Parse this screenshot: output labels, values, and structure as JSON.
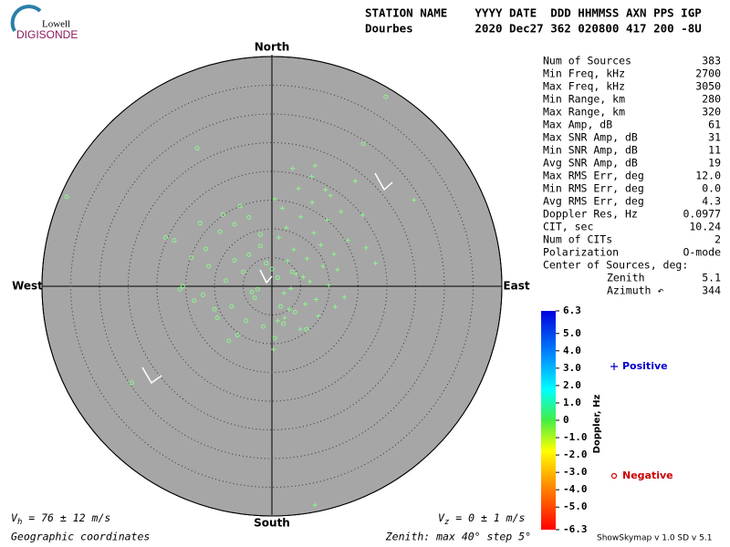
{
  "logo": {
    "top": "Lowell",
    "bottom": "DIGISONDE"
  },
  "header": {
    "line1": "STATION NAME    YYYY DATE  DDD HHMMSS AXN PPS IGP",
    "line2": "Dourbes         2020 Dec27 362 020800 417 200 -8U"
  },
  "stats": {
    "rows": [
      [
        "Num of Sources",
        "383"
      ],
      [
        "Min Freq, kHz",
        "2700"
      ],
      [
        "Max Freq, kHz",
        "3050"
      ],
      [
        "Min Range, km",
        "280"
      ],
      [
        "Max Range, km",
        "320"
      ],
      [
        "Max Amp, dB",
        "61"
      ],
      [
        "Max SNR Amp, dB",
        "31"
      ],
      [
        "Min SNR Amp, dB",
        "11"
      ],
      [
        "Avg SNR Amp, dB",
        "19"
      ],
      [
        "Max RMS Err, deg",
        "12.0"
      ],
      [
        "Min RMS Err, deg",
        "0.0"
      ],
      [
        "Avg RMS Err, deg",
        "4.3"
      ],
      [
        "Doppler Res, Hz",
        "0.0977"
      ],
      [
        "CIT, sec",
        "10.24"
      ],
      [
        "Num of CITs",
        "2"
      ],
      [
        "Polarization",
        "O-mode"
      ]
    ],
    "center_title": "Center of Sources, deg:",
    "center_rows": [
      [
        "Zenith",
        "5.1"
      ],
      [
        "Azimuth ↶",
        "344"
      ]
    ]
  },
  "footer": {
    "vh": {
      "symbol": "V",
      "sub": "h",
      "text": " = 76 ± 12 m/s"
    },
    "vz": {
      "symbol": "V",
      "sub": "z",
      "text": " = 0 ± 1 m/s"
    },
    "coords": "Geographic coordinates",
    "zenith": "Zenith: max 40°  step 5°",
    "version": "ShowSkymap v 1.0   SD v 5.1"
  },
  "colorbar": {
    "title": "Doppler, Hz",
    "ylim": [
      -6.3,
      6.3
    ],
    "yticks": [
      6.3,
      {
        "value": 5,
        "label": "5.0"
      },
      {
        "value": 4,
        "label": "4.0"
      },
      {
        "value": 3,
        "label": "3.0"
      },
      {
        "value": 2,
        "label": "2.0"
      },
      {
        "value": 1,
        "label": "1.0"
      },
      0,
      {
        "value": -1,
        "label": "-1.0"
      },
      {
        "value": -2,
        "label": "-2.0"
      },
      {
        "value": -3,
        "label": "-3.0"
      },
      {
        "value": -4,
        "label": "-4.0"
      },
      {
        "value": -5,
        "label": "-5.0"
      },
      -6.3
    ]
  },
  "chart_data": {
    "type": "skymap",
    "directions": {
      "north": "North",
      "south": "South",
      "west": "West",
      "east": "East"
    },
    "rlim": [
      0,
      40
    ],
    "rticks": [
      5,
      10,
      15,
      20,
      25,
      30,
      35,
      40
    ],
    "series": [
      {
        "name": "Positive",
        "color": "#0000cc",
        "marker": "plus",
        "marker_color": "#8cf58c",
        "x": [
          1.2,
          2.5,
          3.8,
          5.0,
          6.1,
          7.3,
          8.5,
          9.6,
          10.8,
          12.0,
          4.2,
          6.6,
          8.9,
          2.1,
          3.3,
          5.5,
          7.7,
          9.9,
          11.4,
          13.2,
          0.5,
          1.8,
          4.6,
          6.9,
          10.2,
          14.5,
          15.8,
          3.0,
          5.8,
          8.1,
          12.6,
          2.7,
          7.0,
          9.3,
          1.0,
          4.9,
          11.0,
          16.4,
          18.0,
          7.5,
          0.3,
          2.2,
          24.7,
          7.5,
          3.6
        ],
        "y": [
          8.5,
          10.2,
          6.4,
          12.1,
          4.8,
          9.3,
          7.2,
          11.5,
          5.6,
          13.0,
          2.1,
          0.8,
          3.5,
          -1.2,
          -0.4,
          1.6,
          -2.3,
          0.2,
          2.9,
          8.0,
          15.2,
          13.6,
          17.0,
          19.1,
          15.8,
          18.3,
          12.4,
          -4.0,
          -3.1,
          -5.2,
          -1.9,
          4.4,
          14.6,
          16.8,
          -6.0,
          -7.5,
          -3.6,
          6.7,
          4.0,
          21.0,
          -11.0,
          -5.5,
          15.0,
          -38.1,
          20.5
        ]
      },
      {
        "name": "Negative",
        "color": "#cc0000",
        "marker": "circle",
        "marker_color": "#8cf58c",
        "x": [
          -35.7,
          19.8,
          15.9,
          -24.4,
          -13.0,
          -17.0,
          -14.0,
          -11.5,
          -9.0,
          -6.5,
          -4.0,
          -2.0,
          -15.5,
          -12.0,
          -8.0,
          -5.0,
          -3.0,
          -1.0,
          -10.0,
          -7.0,
          -4.5,
          -2.5,
          -13.5,
          -9.5,
          -6.0,
          -1.5,
          0.5,
          2.0,
          3.5,
          -8.5,
          -5.5,
          -3.5,
          0.0,
          1.5,
          -11.0,
          -7.5,
          -18.5,
          -16.0,
          -4.0,
          -2.0,
          -6.5,
          1.0,
          -12.5,
          4.0,
          6.0
        ],
        "y": [
          15.6,
          33.0,
          24.8,
          -16.8,
          24.0,
          8.0,
          5.0,
          6.5,
          9.5,
          10.8,
          12.0,
          7.0,
          0.0,
          -1.5,
          1.0,
          2.5,
          -2.0,
          4.0,
          -4.0,
          -3.5,
          -6.0,
          -0.5,
          -2.5,
          -5.5,
          -8.5,
          -7.0,
          -9.0,
          -6.5,
          2.5,
          12.5,
          14.0,
          -1.0,
          3.0,
          -3.5,
          3.5,
          -9.5,
          8.5,
          -0.5,
          5.5,
          9.0,
          4.5,
          1.5,
          11.0,
          -4.5,
          -7.5
        ]
      }
    ]
  }
}
